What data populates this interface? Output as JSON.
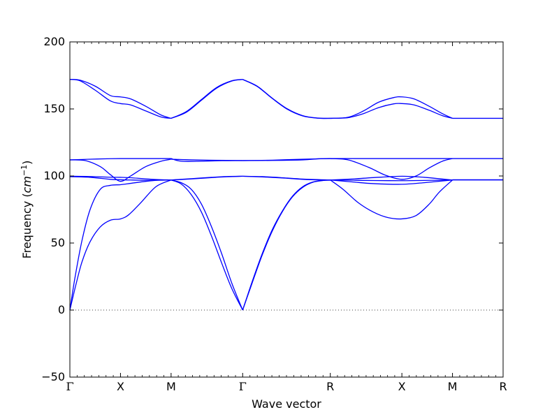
{
  "chart_data": {
    "type": "line",
    "xlabel": "Wave vector",
    "ylabel_prefix": "Frequency (",
    "ylabel_unit_base": "cm",
    "ylabel_unit_exp": "−1",
    "ylabel_suffix": ")",
    "ylim": [
      -50,
      200
    ],
    "yticks": [
      -50,
      0,
      50,
      100,
      150,
      200
    ],
    "ytick_labels": [
      "−50",
      "0",
      "50",
      "100",
      "150",
      "200"
    ],
    "zero_line": true,
    "line_color": "#0000ff",
    "q_points": [
      {
        "label": "Γ",
        "x": 0.0
      },
      {
        "label": "X",
        "x": 0.5
      },
      {
        "label": "M",
        "x": 1.0
      },
      {
        "label": "Γ",
        "x": 1.707
      },
      {
        "label": "R",
        "x": 2.573
      },
      {
        "label": "X",
        "x": 3.28
      },
      {
        "label": "M",
        "x": 3.78
      },
      {
        "label": "R",
        "x": 4.28
      }
    ],
    "series": [
      {
        "values": [
          [
            0,
            0
          ],
          [
            0.05,
            24
          ],
          [
            0.12,
            52
          ],
          [
            0.2,
            75
          ],
          [
            0.3,
            90
          ],
          [
            0.4,
            93
          ],
          [
            0.5,
            93.5
          ],
          [
            0.6,
            94.5
          ],
          [
            0.75,
            96
          ],
          [
            0.9,
            97
          ],
          [
            1.0,
            97
          ]
        ]
      },
      {
        "values": [
          [
            0,
            0
          ],
          [
            0.06,
            19
          ],
          [
            0.12,
            36
          ],
          [
            0.2,
            51
          ],
          [
            0.3,
            62
          ],
          [
            0.4,
            67
          ],
          [
            0.5,
            68
          ],
          [
            0.58,
            71
          ],
          [
            0.7,
            80
          ],
          [
            0.85,
            92
          ],
          [
            1.0,
            97
          ]
        ]
      },
      {
        "values": [
          [
            0,
            99.5
          ],
          [
            0.2,
            99
          ],
          [
            0.4,
            97.5
          ],
          [
            0.5,
            97.2
          ],
          [
            0.6,
            97
          ],
          [
            0.8,
            96.8
          ],
          [
            1.0,
            97
          ]
        ]
      },
      {
        "values": [
          [
            0,
            99.8
          ],
          [
            0.2,
            99.6
          ],
          [
            0.4,
            99.1
          ],
          [
            0.5,
            99
          ],
          [
            0.6,
            98.7
          ],
          [
            0.8,
            97.6
          ],
          [
            1.0,
            97
          ]
        ]
      },
      {
        "values": [
          [
            0,
            112
          ],
          [
            0.15,
            111.5
          ],
          [
            0.3,
            107
          ],
          [
            0.4,
            101
          ],
          [
            0.5,
            96
          ],
          [
            0.6,
            100
          ],
          [
            0.75,
            107
          ],
          [
            0.9,
            111
          ],
          [
            1.0,
            112.5
          ]
        ]
      },
      {
        "values": [
          [
            0,
            112
          ],
          [
            0.2,
            112.5
          ],
          [
            0.4,
            112.9
          ],
          [
            0.5,
            113
          ],
          [
            0.7,
            113
          ],
          [
            1.0,
            113
          ]
        ]
      },
      {
        "values": [
          [
            0,
            172
          ],
          [
            0.1,
            171
          ],
          [
            0.25,
            164
          ],
          [
            0.4,
            156
          ],
          [
            0.5,
            154
          ],
          [
            0.6,
            153
          ],
          [
            0.75,
            148.5
          ],
          [
            0.9,
            144
          ],
          [
            1.0,
            143
          ]
        ]
      },
      {
        "values": [
          [
            0,
            172
          ],
          [
            0.1,
            171.5
          ],
          [
            0.25,
            167
          ],
          [
            0.4,
            160
          ],
          [
            0.5,
            159
          ],
          [
            0.6,
            157.5
          ],
          [
            0.75,
            152
          ],
          [
            0.9,
            145.5
          ],
          [
            1.0,
            143
          ]
        ]
      },
      {
        "values": [
          [
            1.0,
            97
          ],
          [
            1.1,
            95
          ],
          [
            1.2,
            90
          ],
          [
            1.3,
            79
          ],
          [
            1.4,
            62
          ],
          [
            1.5,
            42
          ],
          [
            1.6,
            20
          ],
          [
            1.707,
            0
          ]
        ]
      },
      {
        "values": [
          [
            1.0,
            97
          ],
          [
            1.1,
            94
          ],
          [
            1.2,
            86
          ],
          [
            1.3,
            73
          ],
          [
            1.4,
            55
          ],
          [
            1.5,
            35
          ],
          [
            1.6,
            16
          ],
          [
            1.707,
            0
          ]
        ]
      },
      {
        "values": [
          [
            1.0,
            97
          ],
          [
            1.2,
            98
          ],
          [
            1.4,
            99
          ],
          [
            1.55,
            99.6
          ],
          [
            1.707,
            99.8
          ]
        ]
      },
      {
        "values": [
          [
            1.0,
            97
          ],
          [
            1.2,
            97.8
          ],
          [
            1.4,
            98.8
          ],
          [
            1.55,
            99.4
          ],
          [
            1.707,
            99.8
          ]
        ]
      },
      {
        "values": [
          [
            1.0,
            112.5
          ],
          [
            1.2,
            112
          ],
          [
            1.45,
            111.7
          ],
          [
            1.707,
            111.5
          ]
        ]
      },
      {
        "values": [
          [
            1.0,
            113
          ],
          [
            1.1,
            111
          ],
          [
            1.3,
            111
          ],
          [
            1.5,
            111.4
          ],
          [
            1.707,
            111.5
          ]
        ]
      },
      {
        "values": [
          [
            1.0,
            143
          ],
          [
            1.15,
            148
          ],
          [
            1.3,
            157
          ],
          [
            1.45,
            166
          ],
          [
            1.6,
            171
          ],
          [
            1.707,
            172
          ]
        ]
      },
      {
        "values": [
          [
            1.0,
            143
          ],
          [
            1.15,
            147.5
          ],
          [
            1.3,
            156.5
          ],
          [
            1.45,
            165.5
          ],
          [
            1.6,
            170.8
          ],
          [
            1.707,
            172
          ]
        ]
      },
      {
        "values": [
          [
            1.707,
            0
          ],
          [
            1.8,
            21
          ],
          [
            1.9,
            42
          ],
          [
            2.0,
            60
          ],
          [
            2.1,
            74
          ],
          [
            2.2,
            85
          ],
          [
            2.3,
            92
          ],
          [
            2.4,
            95.5
          ],
          [
            2.5,
            96.7
          ],
          [
            2.573,
            97
          ]
        ]
      },
      {
        "values": [
          [
            1.707,
            0
          ],
          [
            1.8,
            20
          ],
          [
            1.9,
            41
          ],
          [
            2.0,
            59
          ],
          [
            2.1,
            73.5
          ],
          [
            2.2,
            84.5
          ],
          [
            2.3,
            91.5
          ],
          [
            2.4,
            95.3
          ],
          [
            2.5,
            96.6
          ],
          [
            2.573,
            97
          ]
        ]
      },
      {
        "values": [
          [
            1.707,
            99.8
          ],
          [
            1.9,
            99.5
          ],
          [
            2.1,
            98.7
          ],
          [
            2.3,
            97.7
          ],
          [
            2.573,
            97
          ]
        ]
      },
      {
        "values": [
          [
            1.707,
            99.8
          ],
          [
            1.9,
            99.3
          ],
          [
            2.1,
            98.5
          ],
          [
            2.3,
            97.5
          ],
          [
            2.573,
            96.8
          ]
        ]
      },
      {
        "values": [
          [
            1.707,
            111.5
          ],
          [
            2.0,
            111.6
          ],
          [
            2.3,
            112
          ],
          [
            2.45,
            112.8
          ],
          [
            2.573,
            113
          ]
        ]
      },
      {
        "values": [
          [
            1.707,
            111.5
          ],
          [
            2.0,
            111.8
          ],
          [
            2.3,
            112.5
          ],
          [
            2.573,
            113
          ]
        ]
      },
      {
        "values": [
          [
            1.707,
            172
          ],
          [
            1.85,
            167
          ],
          [
            2.0,
            158
          ],
          [
            2.15,
            150
          ],
          [
            2.3,
            145
          ],
          [
            2.45,
            143.2
          ],
          [
            2.573,
            143
          ]
        ]
      },
      {
        "values": [
          [
            1.707,
            172
          ],
          [
            1.85,
            166.8
          ],
          [
            2.0,
            157.8
          ],
          [
            2.15,
            149.7
          ],
          [
            2.3,
            144.8
          ],
          [
            2.45,
            143.1
          ],
          [
            2.573,
            143
          ]
        ]
      },
      {
        "values": [
          [
            2.573,
            97
          ],
          [
            2.7,
            90
          ],
          [
            2.85,
            80
          ],
          [
            3.0,
            73
          ],
          [
            3.14,
            69
          ],
          [
            3.28,
            68
          ],
          [
            3.42,
            70.5
          ],
          [
            3.55,
            79
          ],
          [
            3.65,
            88
          ],
          [
            3.78,
            97
          ]
        ]
      },
      {
        "values": [
          [
            2.573,
            97
          ],
          [
            2.8,
            95.5
          ],
          [
            3.0,
            94.3
          ],
          [
            3.28,
            93.8
          ],
          [
            3.5,
            95
          ],
          [
            3.78,
            97
          ]
        ]
      },
      {
        "values": [
          [
            2.573,
            97
          ],
          [
            2.8,
            97.8
          ],
          [
            3.0,
            98.8
          ],
          [
            3.28,
            99.8
          ],
          [
            3.5,
            99
          ],
          [
            3.78,
            97
          ]
        ]
      },
      {
        "values": [
          [
            2.573,
            97
          ],
          [
            2.8,
            96.8
          ],
          [
            3.0,
            96.6
          ],
          [
            3.28,
            96.5
          ],
          [
            3.5,
            96.7
          ],
          [
            3.78,
            97
          ]
        ]
      },
      {
        "values": [
          [
            2.573,
            113
          ],
          [
            2.75,
            112
          ],
          [
            2.95,
            106.5
          ],
          [
            3.12,
            100.5
          ],
          [
            3.28,
            97.5
          ],
          [
            3.42,
            100
          ],
          [
            3.55,
            106
          ],
          [
            3.68,
            111
          ],
          [
            3.78,
            113
          ]
        ]
      },
      {
        "values": [
          [
            2.573,
            113
          ],
          [
            3.0,
            113
          ],
          [
            3.5,
            113
          ],
          [
            3.78,
            113
          ]
        ]
      },
      {
        "values": [
          [
            2.573,
            143
          ],
          [
            2.75,
            143.5
          ],
          [
            2.9,
            146.5
          ],
          [
            3.05,
            151
          ],
          [
            3.2,
            153.8
          ],
          [
            3.28,
            154
          ],
          [
            3.4,
            153
          ],
          [
            3.55,
            149
          ],
          [
            3.68,
            145
          ],
          [
            3.78,
            143
          ]
        ]
      },
      {
        "values": [
          [
            2.573,
            143
          ],
          [
            2.75,
            143.8
          ],
          [
            2.9,
            148.5
          ],
          [
            3.05,
            155
          ],
          [
            3.2,
            158.5
          ],
          [
            3.28,
            159
          ],
          [
            3.4,
            157.5
          ],
          [
            3.55,
            152
          ],
          [
            3.68,
            146.5
          ],
          [
            3.78,
            143
          ]
        ]
      },
      {
        "values": [
          [
            3.78,
            97
          ],
          [
            4.28,
            97
          ]
        ]
      },
      {
        "values": [
          [
            3.78,
            97.2
          ],
          [
            4.28,
            97.2
          ]
        ]
      },
      {
        "values": [
          [
            3.78,
            113
          ],
          [
            4.28,
            113
          ]
        ]
      },
      {
        "values": [
          [
            3.78,
            143
          ],
          [
            4.28,
            143
          ]
        ]
      }
    ]
  }
}
